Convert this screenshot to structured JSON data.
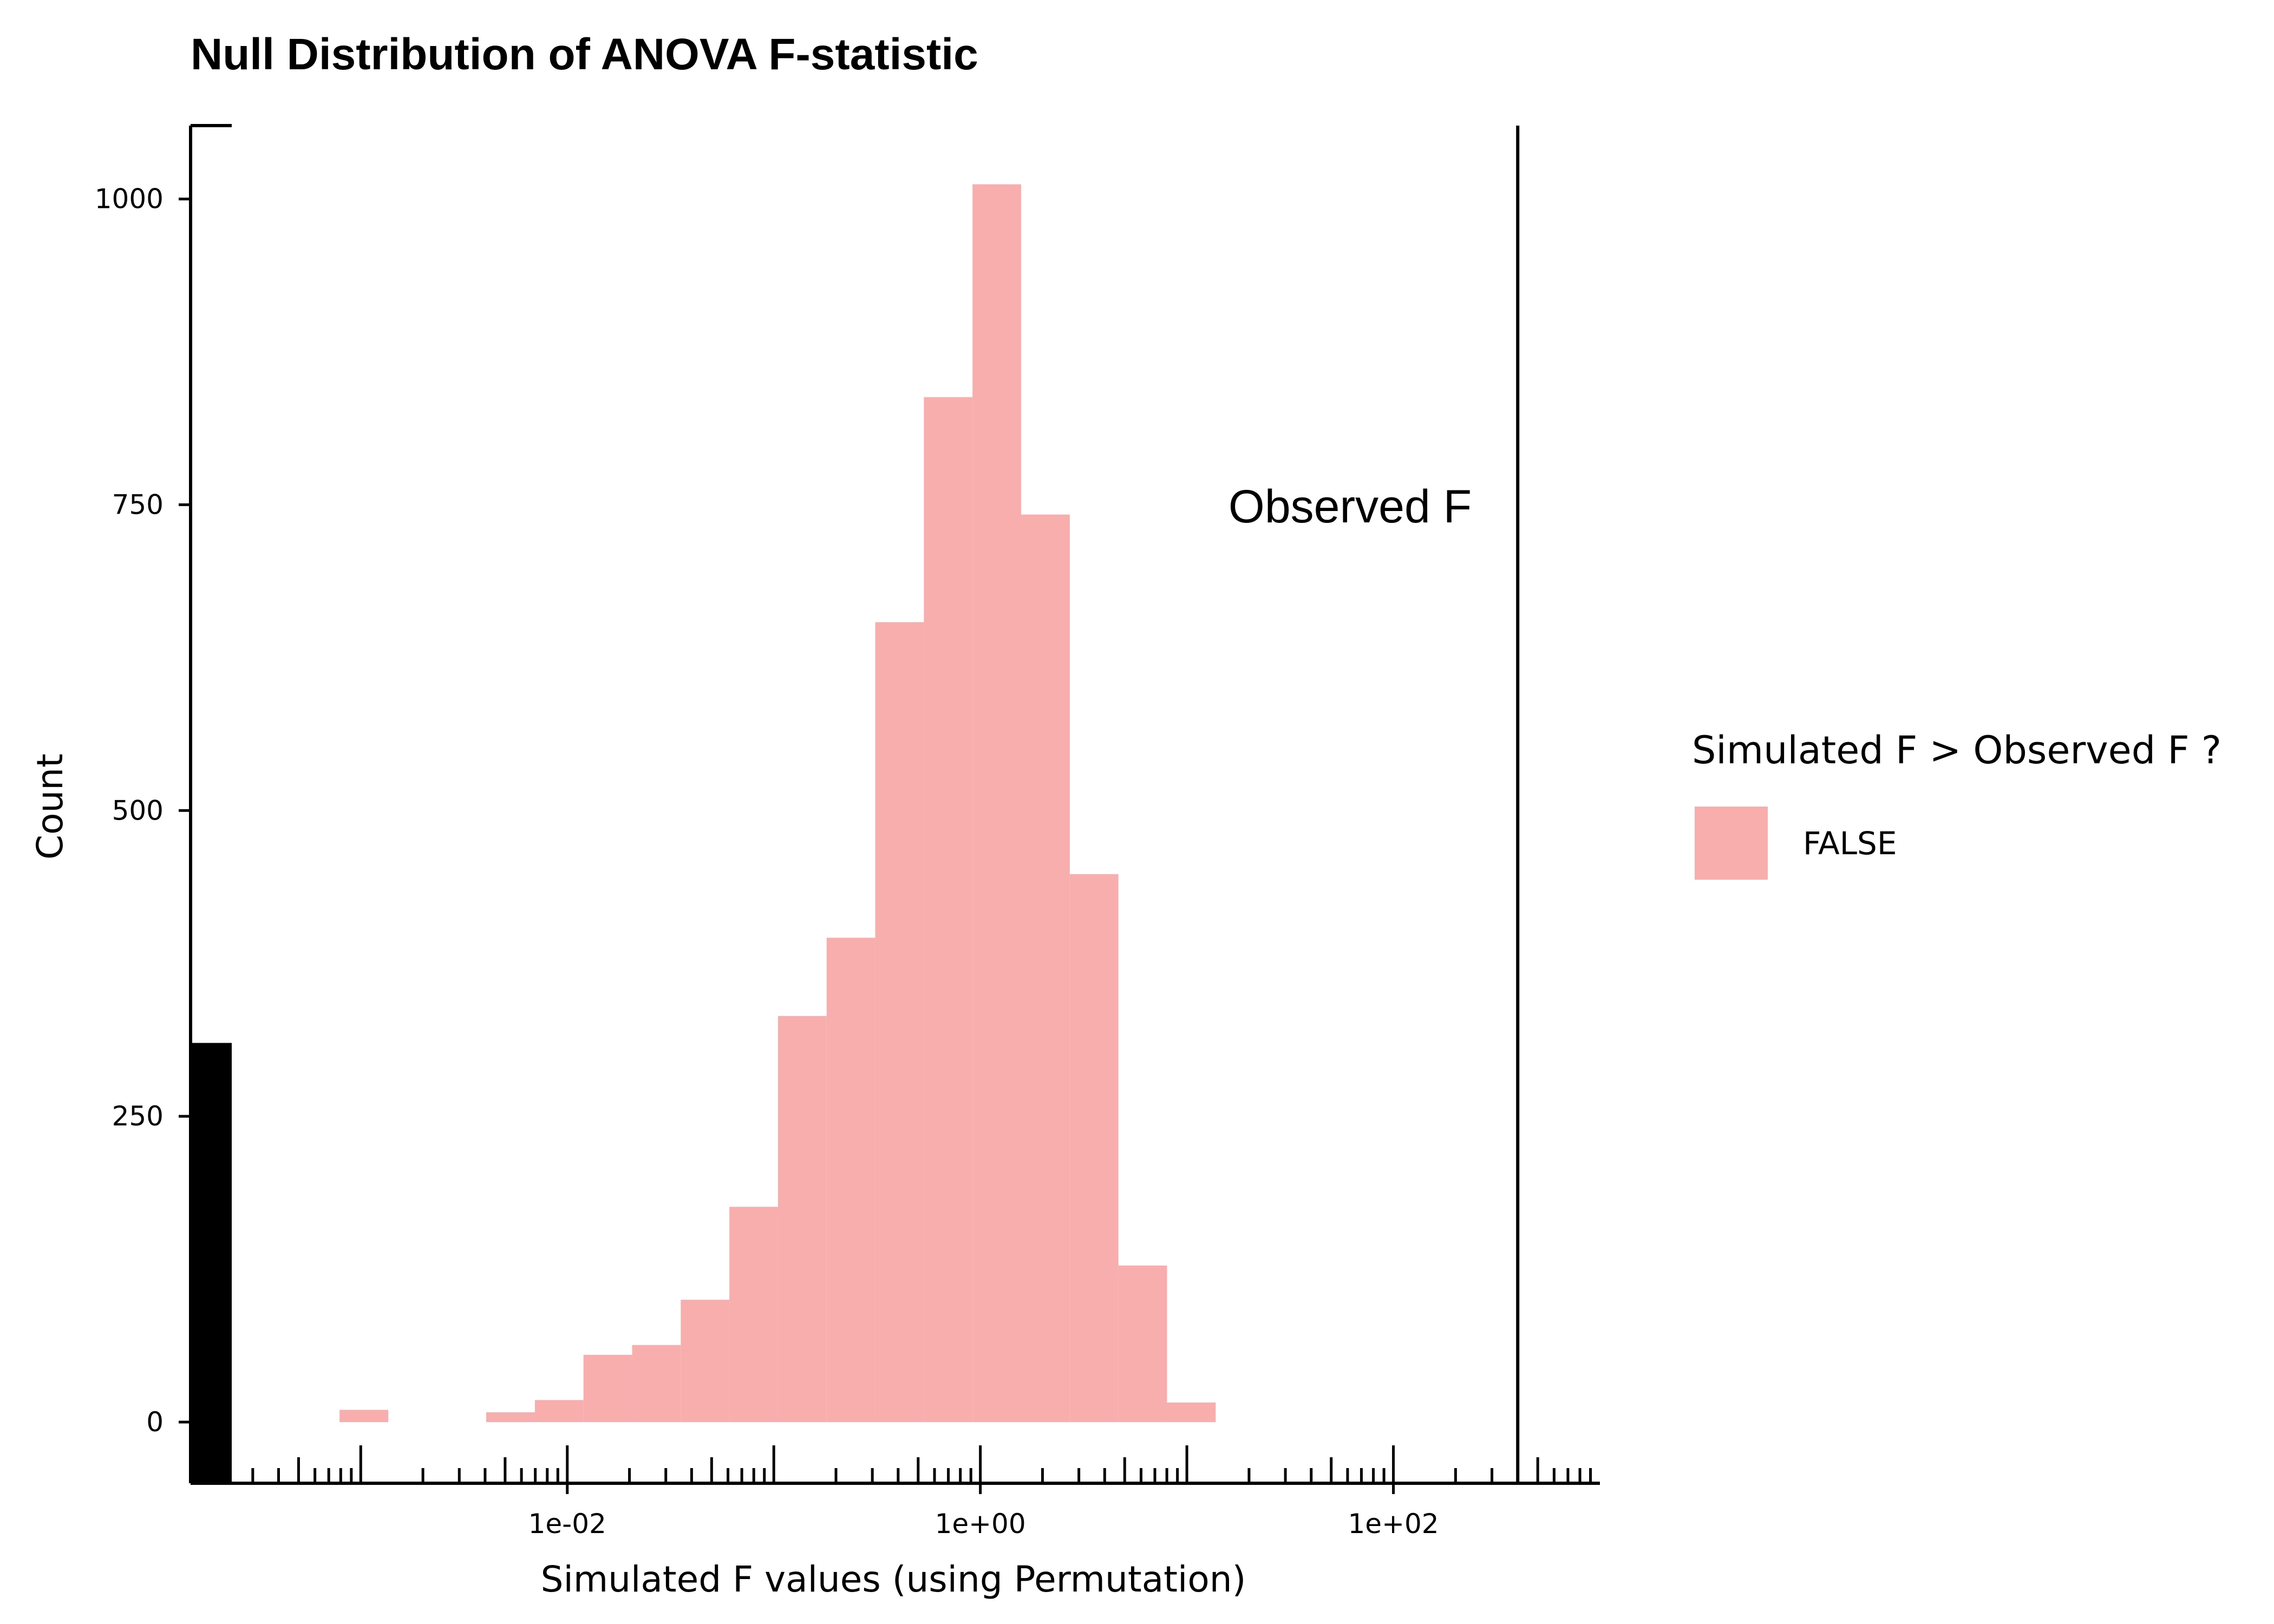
{
  "chart_data": {
    "type": "bar",
    "title": "Null Distribution of ANOVA F-statistic",
    "xlabel": "Simulated F values (using Permutation)",
    "ylabel": "Count",
    "x_scale": "log10",
    "xlim": [
      0.00015,
      1000
    ],
    "ylim": [
      -50,
      1060
    ],
    "x_tick_labels": [
      {
        "value": 0.01,
        "label": "1e-02"
      },
      {
        "value": 1,
        "label": "1e+00"
      },
      {
        "value": 100,
        "label": "1e+02"
      }
    ],
    "y_ticks": [
      0,
      250,
      500,
      750,
      1000
    ],
    "bins": [
      {
        "x_from": 0.00079,
        "x_to": 0.00136,
        "count": 10
      },
      {
        "x_from": 0.00405,
        "x_to": 0.00697,
        "count": 8
      },
      {
        "x_from": 0.00697,
        "x_to": 0.01198,
        "count": 18
      },
      {
        "x_from": 0.01198,
        "x_to": 0.02061,
        "count": 55
      },
      {
        "x_from": 0.02061,
        "x_to": 0.03544,
        "count": 63
      },
      {
        "x_from": 0.03544,
        "x_to": 0.06095,
        "count": 100
      },
      {
        "x_from": 0.06095,
        "x_to": 0.1048,
        "count": 176
      },
      {
        "x_from": 0.1048,
        "x_to": 0.1802,
        "count": 332
      },
      {
        "x_from": 0.1802,
        "x_to": 0.3099,
        "count": 396
      },
      {
        "x_from": 0.3099,
        "x_to": 0.533,
        "count": 654
      },
      {
        "x_from": 0.533,
        "x_to": 0.9166,
        "count": 838
      },
      {
        "x_from": 0.9166,
        "x_to": 1.576,
        "count": 1012
      },
      {
        "x_from": 1.576,
        "x_to": 2.711,
        "count": 742
      },
      {
        "x_from": 2.711,
        "x_to": 4.662,
        "count": 448
      },
      {
        "x_from": 4.662,
        "x_to": 8.017,
        "count": 128
      },
      {
        "x_from": 8.017,
        "x_to": 13.79,
        "count": 16
      }
    ],
    "left_black_bar_count": 310,
    "observed_line": {
      "x": 400,
      "label": "Observed F",
      "color": "#000000"
    },
    "bar_color": "#F8AEAD",
    "legend": {
      "title": "Simulated F > Observed F ?",
      "entries": [
        {
          "label": "FALSE",
          "color": "#F8AEAD"
        }
      ],
      "position": "right"
    },
    "grid": false
  }
}
